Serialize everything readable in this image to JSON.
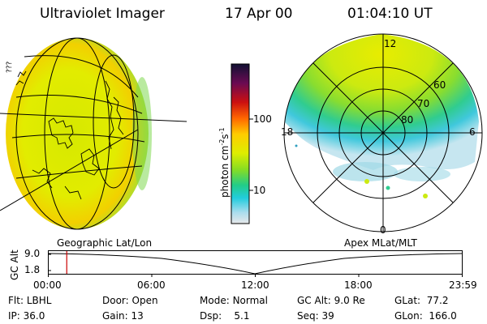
{
  "header": {
    "title": "Ultraviolet Imager",
    "date": "17 Apr 00",
    "time": "01:04:10 UT"
  },
  "colorbar": {
    "unit": "photon cm",
    "unit_sup1": "-2",
    "unit_mid": "s",
    "unit_sup2": "-1",
    "ticks": [
      "100",
      "10"
    ],
    "scale": "log",
    "colors": [
      "#111133",
      "#8a0a4a",
      "#cc1010",
      "#ff6600",
      "#ffcc00",
      "#ddee00",
      "#88dd22",
      "#22cc88",
      "#22ccdd",
      "#aaddee",
      "#e8e8ea"
    ]
  },
  "left_panel": {
    "label": "Geographic Lat/Lon",
    "side_text": "???"
  },
  "right_panel": {
    "label": "Apex MLat/MLT",
    "mlt_labels": [
      "12",
      "18",
      "6",
      "0"
    ],
    "mlat_labels": [
      "60",
      "70",
      "80"
    ]
  },
  "altitude_plot": {
    "axis_label": "GC Alt",
    "y_ticks": [
      "9.0",
      "1.8"
    ],
    "x_ticks": [
      "00:00",
      "06:00",
      "12:00",
      "18:00",
      "23:59"
    ],
    "current_time_hours": 1.07,
    "marker_color": "#cc0000"
  },
  "footer": {
    "row1": [
      {
        "key": "Flt:",
        "val": "LBHL"
      },
      {
        "key": "Door:",
        "val": "Open"
      },
      {
        "key": "Mode:",
        "val": "Normal"
      },
      {
        "key": "GC Alt:",
        "val": "9.0 Re"
      },
      {
        "key": "GLat:",
        "val": "77.2"
      }
    ],
    "row2": [
      {
        "key": "IP:",
        "val": "36.0"
      },
      {
        "key": "Gain:",
        "val": "13"
      },
      {
        "key": "Dsp:",
        "val": "5.1"
      },
      {
        "key": "Seq:",
        "val": "39"
      },
      {
        "key": "GLon:",
        "val": "166.0"
      }
    ]
  }
}
